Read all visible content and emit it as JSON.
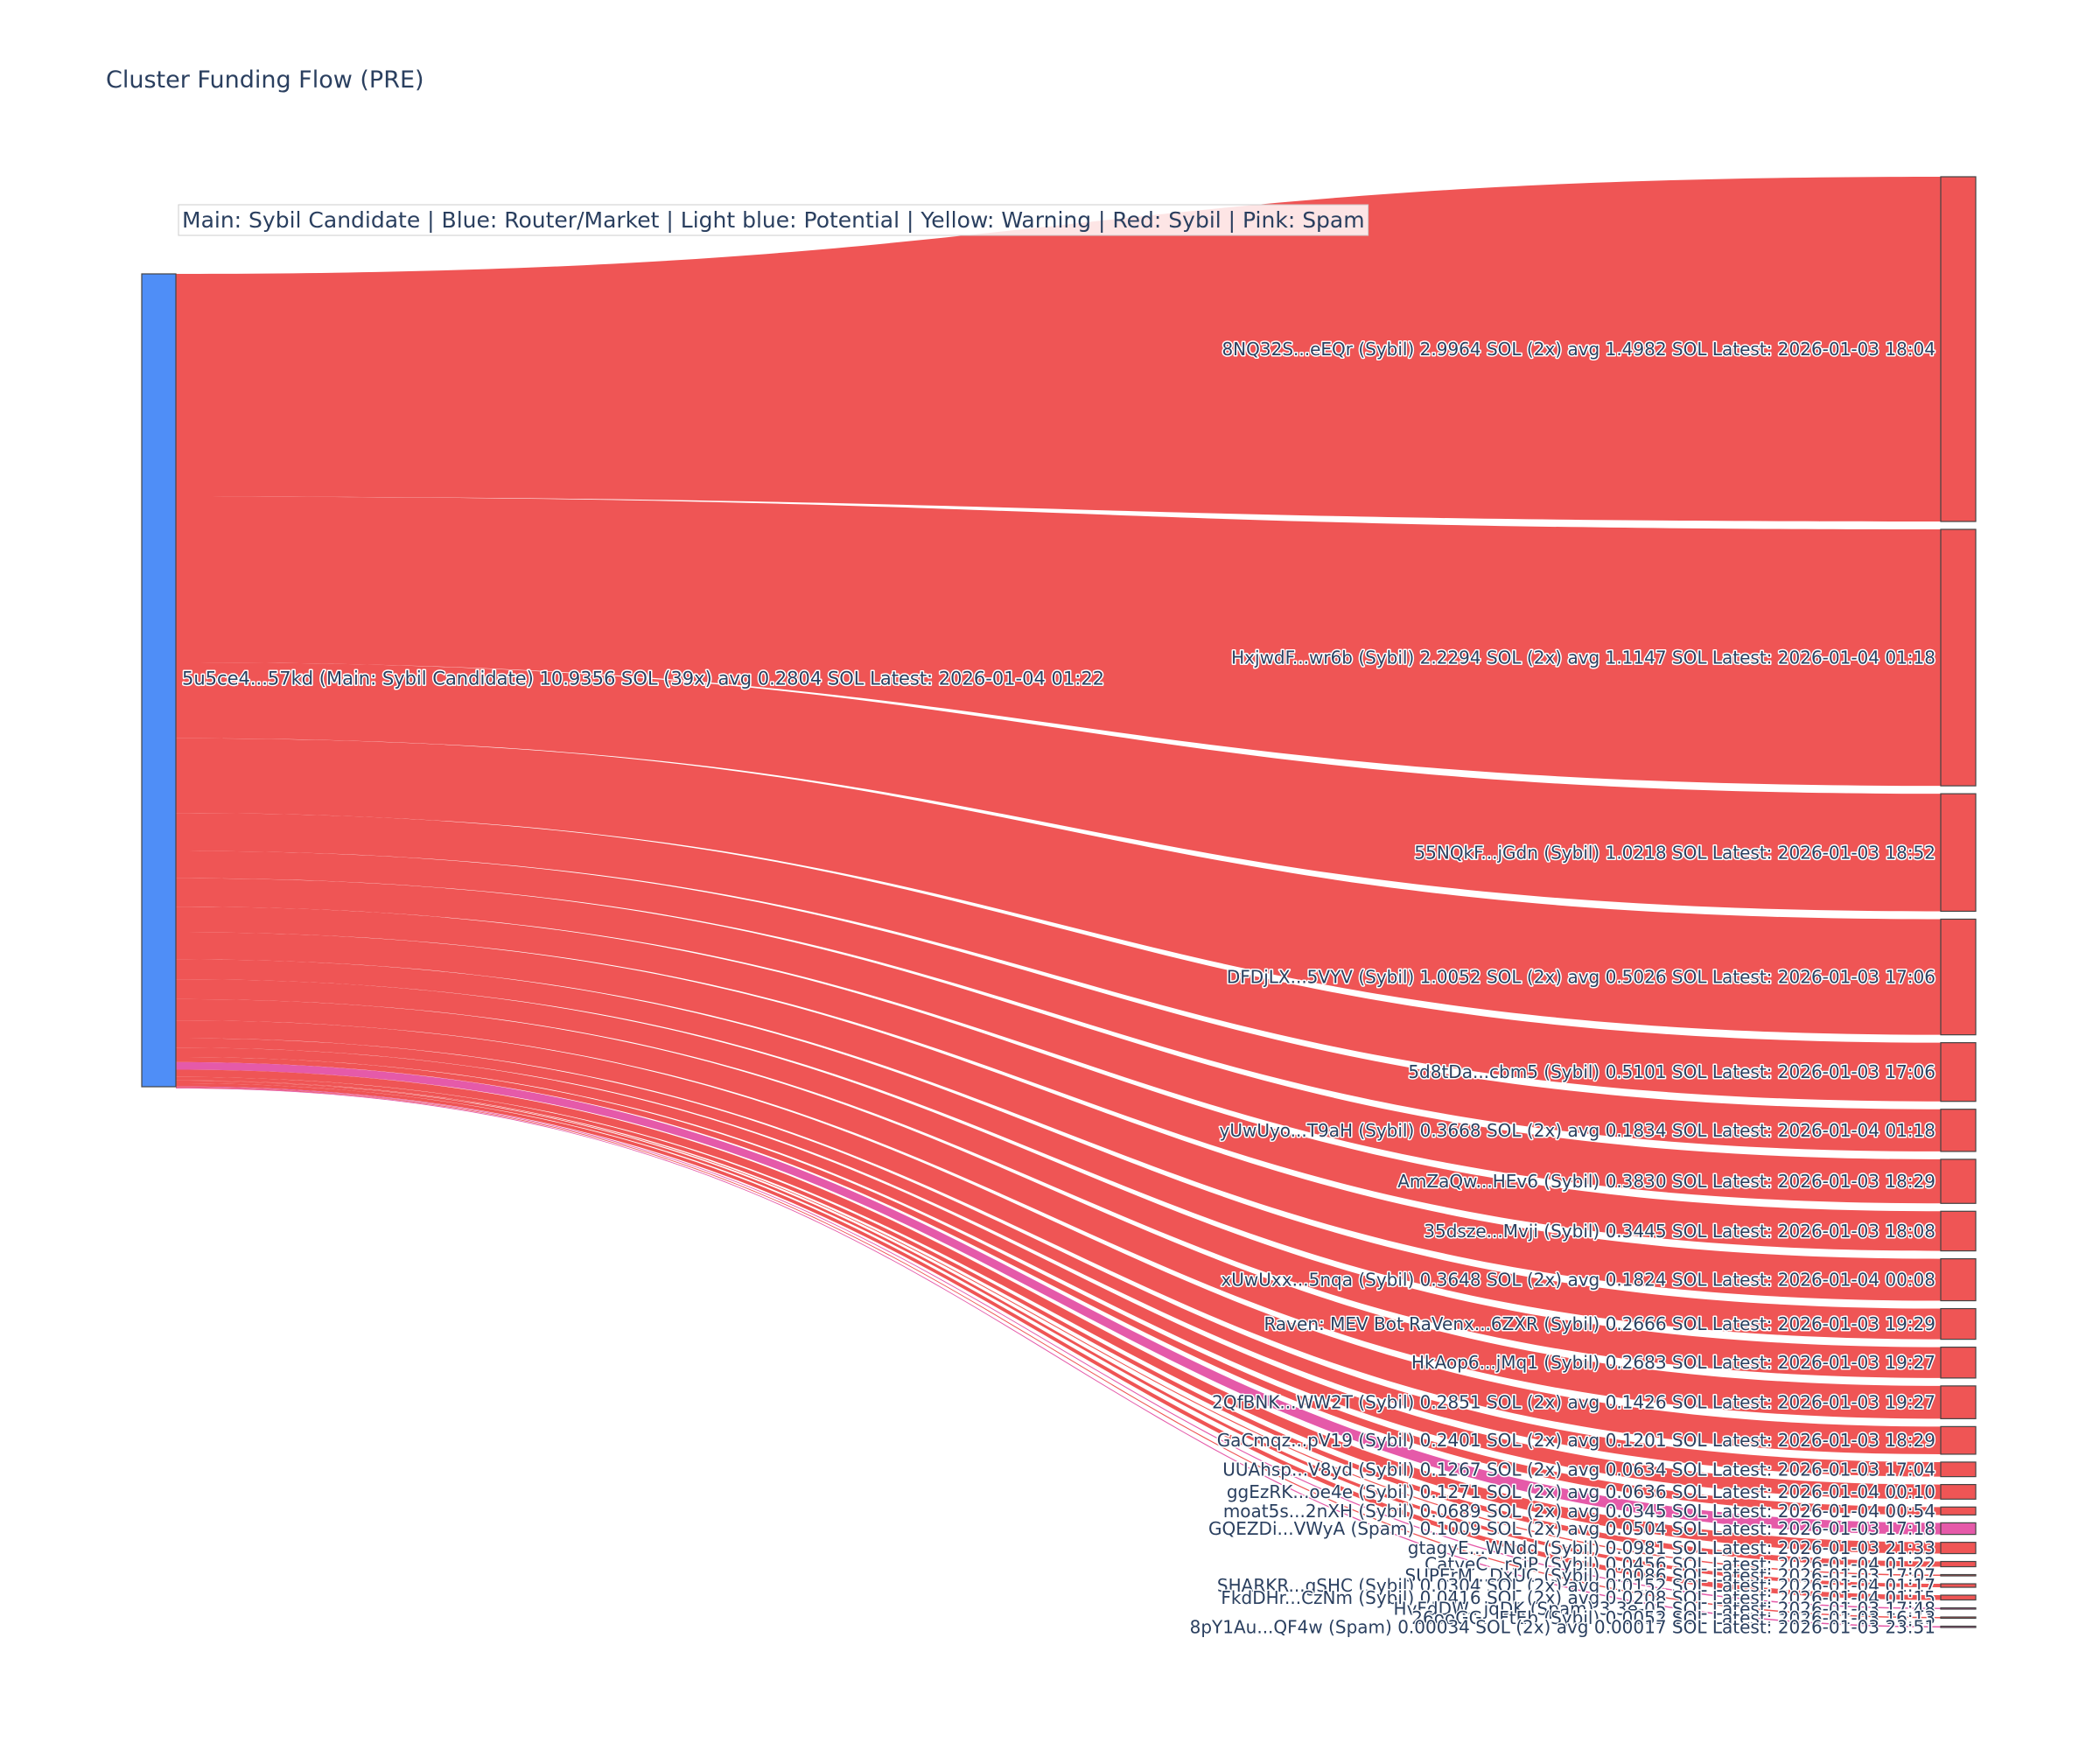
{
  "chart_data": {
    "type": "sankey",
    "title": "Cluster Funding Flow (PRE)",
    "legend_note": "Main: Sybil Candidate  |  Blue: Router/Market | Light blue: Potential | Yellow: Warning | Red: Sybil | Pink: Spam",
    "colors": {
      "main": "#4f8ef7",
      "sybil": "#ef5555",
      "spam": "#e55aa9"
    },
    "source": {
      "label": "5u5ce4...57kd (Main: Sybil Candidate) 10.9356 SOL (39x) avg 0.2804 SOL Latest: 2026-01-04 01:22",
      "total_sol": 10.9356,
      "category": "main"
    },
    "targets": [
      {
        "label": "8NQ32S...eEQr (Sybil) 2.9964 SOL (2x) avg 1.4982 SOL Latest: 2026-01-03 18:04",
        "value": 2.9964,
        "category": "sybil"
      },
      {
        "label": "HxjwdF...wr6b (Sybil) 2.2294 SOL (2x) avg 1.1147 SOL Latest: 2026-01-04 01:18",
        "value": 2.2294,
        "category": "sybil"
      },
      {
        "label": "55NQkF...jGdn (Sybil) 1.0218 SOL Latest: 2026-01-03 18:52",
        "value": 1.0218,
        "category": "sybil"
      },
      {
        "label": "DFDjLX...5VYV (Sybil) 1.0052 SOL (2x) avg 0.5026 SOL Latest: 2026-01-03 17:06",
        "value": 1.0052,
        "category": "sybil"
      },
      {
        "label": "5d8tDa...cbm5 (Sybil) 0.5101 SOL Latest: 2026-01-03 17:06",
        "value": 0.5101,
        "category": "sybil"
      },
      {
        "label": "yUwUyo...T9aH (Sybil) 0.3668 SOL (2x) avg 0.1834 SOL Latest: 2026-01-04 01:18",
        "value": 0.3668,
        "category": "sybil"
      },
      {
        "label": "AmZaQw...HEv6 (Sybil) 0.3830 SOL Latest: 2026-01-03 18:29",
        "value": 0.383,
        "category": "sybil"
      },
      {
        "label": "35dsze...Mvji (Sybil) 0.3445 SOL Latest: 2026-01-03 18:08",
        "value": 0.3445,
        "category": "sybil"
      },
      {
        "label": "xUwUxx...5nqa (Sybil) 0.3648 SOL (2x) avg 0.1824 SOL Latest: 2026-01-04 00:08",
        "value": 0.3648,
        "category": "sybil"
      },
      {
        "label": "Raven: MEV Bot RaVenx...6ZXR (Sybil) 0.2666 SOL Latest: 2026-01-03 19:29",
        "value": 0.2666,
        "category": "sybil"
      },
      {
        "label": "HkAop6...jMq1 (Sybil) 0.2683 SOL Latest: 2026-01-03 19:27",
        "value": 0.2683,
        "category": "sybil"
      },
      {
        "label": "2QfBNK...WW2T (Sybil) 0.2851 SOL (2x) avg 0.1426 SOL Latest: 2026-01-03 19:27",
        "value": 0.2851,
        "category": "sybil"
      },
      {
        "label": "GaCmqz...pV19 (Sybil) 0.2401 SOL (2x) avg 0.1201 SOL Latest: 2026-01-03 18:29",
        "value": 0.2401,
        "category": "sybil"
      },
      {
        "label": "UUAhsp...V8yd (Sybil) 0.1267 SOL (2x) avg 0.0634 SOL Latest: 2026-01-03 17:04",
        "value": 0.1267,
        "category": "sybil"
      },
      {
        "label": "ggEzRK...oe4e (Sybil) 0.1271 SOL (2x) avg 0.0636 SOL Latest: 2026-01-04 00:10",
        "value": 0.1271,
        "category": "sybil"
      },
      {
        "label": "moat5s...2nXH (Sybil) 0.0689 SOL (2x) avg 0.0345 SOL Latest: 2026-01-04 00:54",
        "value": 0.0689,
        "category": "sybil"
      },
      {
        "label": "GQEZDi...VWyA (Spam) 0.1009 SOL (2x) avg 0.0504 SOL Latest: 2026-01-03 17:18",
        "value": 0.1009,
        "category": "spam"
      },
      {
        "label": "gtagyE...WNdd (Sybil) 0.0981 SOL Latest: 2026-01-03 21:33",
        "value": 0.0981,
        "category": "sybil"
      },
      {
        "label": "CatyeC...rSiP (Sybil) 0.0456 SOL Latest: 2026-01-04 01:22",
        "value": 0.0456,
        "category": "sybil"
      },
      {
        "label": "SUPErM...DxUC (Sybil) 0.0086 SOL Latest: 2026-01-03 17:07",
        "value": 0.0086,
        "category": "sybil"
      },
      {
        "label": "SHARKR...gSHC (Sybil) 0.0304 SOL (2x) avg 0.0152 SOL Latest: 2026-01-04 01:17",
        "value": 0.0304,
        "category": "sybil"
      },
      {
        "label": "FkdDHr...CzNm (Sybil) 0.0416 SOL (2x) avg 0.0208 SOL Latest: 2026-01-04 01:15",
        "value": 0.0416,
        "category": "sybil"
      },
      {
        "label": "HvFdDW...jqDK (Spam) 3.3e-05 SOL Latest: 2026-01-03 17:48",
        "value": 3.3e-05,
        "category": "spam"
      },
      {
        "label": "26ooGG...FtEb (Sybil) 0.0052 SOL Latest: 2026-01-03 16:13",
        "value": 0.0052,
        "category": "sybil"
      },
      {
        "label": "8pY1Au...QF4w (Spam) 0.00034 SOL (2x) avg 0.00017 SOL Latest: 2026-01-03 23:51",
        "value": 0.00034,
        "category": "spam"
      }
    ]
  }
}
